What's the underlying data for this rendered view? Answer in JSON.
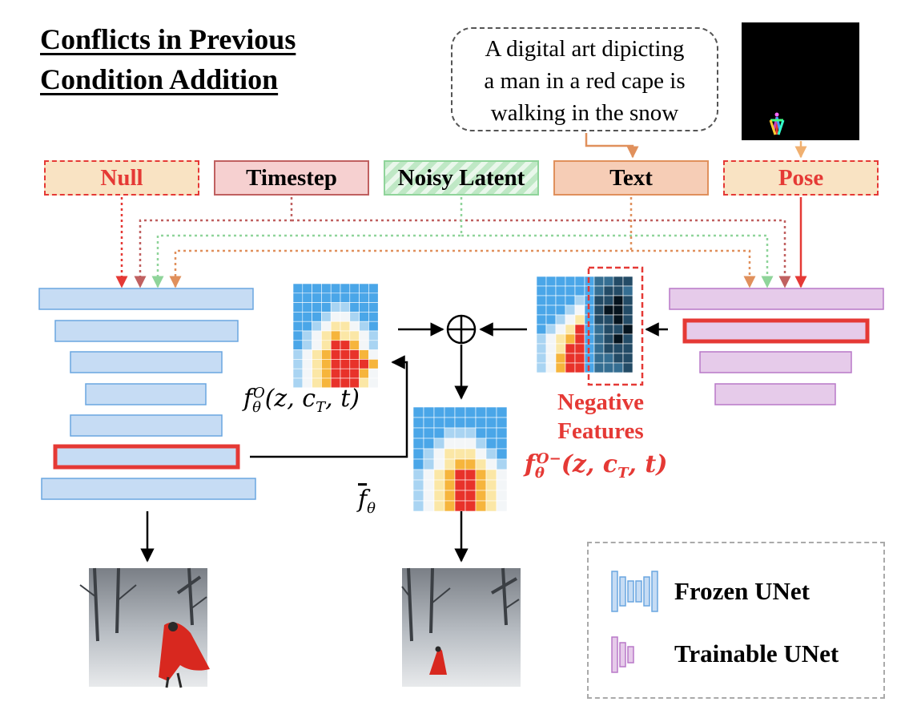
{
  "title": {
    "line1": "Conflicts in Previous",
    "line2": "Condition Addition"
  },
  "prompt": {
    "line1": "A digital art dipicting",
    "line2": "a man in a red cape is",
    "line3": "walking in the snow"
  },
  "conditions": {
    "null": "Null",
    "timestep": "Timestep",
    "noisy_latent": "Noisy Latent",
    "text": "Text",
    "pose": "Pose"
  },
  "negative_label": {
    "line1": "Negative",
    "line2": "Features"
  },
  "legend": {
    "frozen": "Frozen UNet",
    "trainable": "Trainable UNet"
  },
  "operator_symbol": "⊕",
  "colors": {
    "frozen_fill": "#c6dcf4",
    "frozen_stroke": "#6aa6e0",
    "trainable_fill": "#e6cbea",
    "trainable_stroke": "#b878c8",
    "highlight": "#e53935",
    "null_fill": "#f9e3c3",
    "timestep_fill": "#f6d0d0",
    "timestep_stroke": "#c06060",
    "noisy_stroke": "#8fd49a",
    "text_fill": "#f6cdb6",
    "text_stroke": "#e0905c"
  }
}
